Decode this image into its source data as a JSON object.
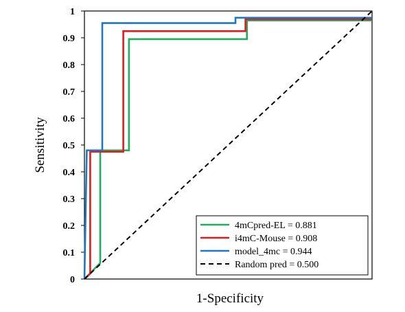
{
  "chart_data": {
    "type": "line",
    "title": "",
    "xlabel": "1-Specificity",
    "ylabel": "Sensitivity",
    "xlim": [
      0,
      1
    ],
    "ylim": [
      0,
      1
    ],
    "y_ticks": [
      "0",
      "0.1",
      "0.2",
      "0.3",
      "0.4",
      "0.5",
      "0.6",
      "0.7",
      "0.8",
      "0.9",
      "1"
    ],
    "x_ticks": [],
    "grid": false,
    "legend_position": "bottom-right",
    "series": [
      {
        "name": "4mCpred-EL = 0.881",
        "color": "#1fae5b",
        "dash": false,
        "points": [
          [
            0.0,
            0.0
          ],
          [
            0.055,
            0.06
          ],
          [
            0.055,
            0.48
          ],
          [
            0.155,
            0.48
          ],
          [
            0.155,
            0.895
          ],
          [
            0.565,
            0.895
          ],
          [
            0.565,
            0.965
          ],
          [
            1.0,
            0.965
          ]
        ]
      },
      {
        "name": "i4mC-Mouse = 0.908",
        "color": "#e41a1c",
        "dash": false,
        "points": [
          [
            0.0,
            0.0
          ],
          [
            0.02,
            0.02
          ],
          [
            0.02,
            0.475
          ],
          [
            0.135,
            0.475
          ],
          [
            0.135,
            0.925
          ],
          [
            0.56,
            0.925
          ],
          [
            0.56,
            0.97
          ],
          [
            1.0,
            0.97
          ]
        ]
      },
      {
        "name": "model_4mc = 0.944",
        "color": "#1f77c4",
        "dash": false,
        "points": [
          [
            0.0,
            0.0
          ],
          [
            0.008,
            0.48
          ],
          [
            0.062,
            0.48
          ],
          [
            0.062,
            0.955
          ],
          [
            0.525,
            0.955
          ],
          [
            0.525,
            0.975
          ],
          [
            1.0,
            0.975
          ]
        ]
      },
      {
        "name": "Random pred = 0.500",
        "color": "#000000",
        "dash": true,
        "points": [
          [
            0.0,
            0.0
          ],
          [
            1.0,
            1.0
          ]
        ]
      }
    ]
  }
}
